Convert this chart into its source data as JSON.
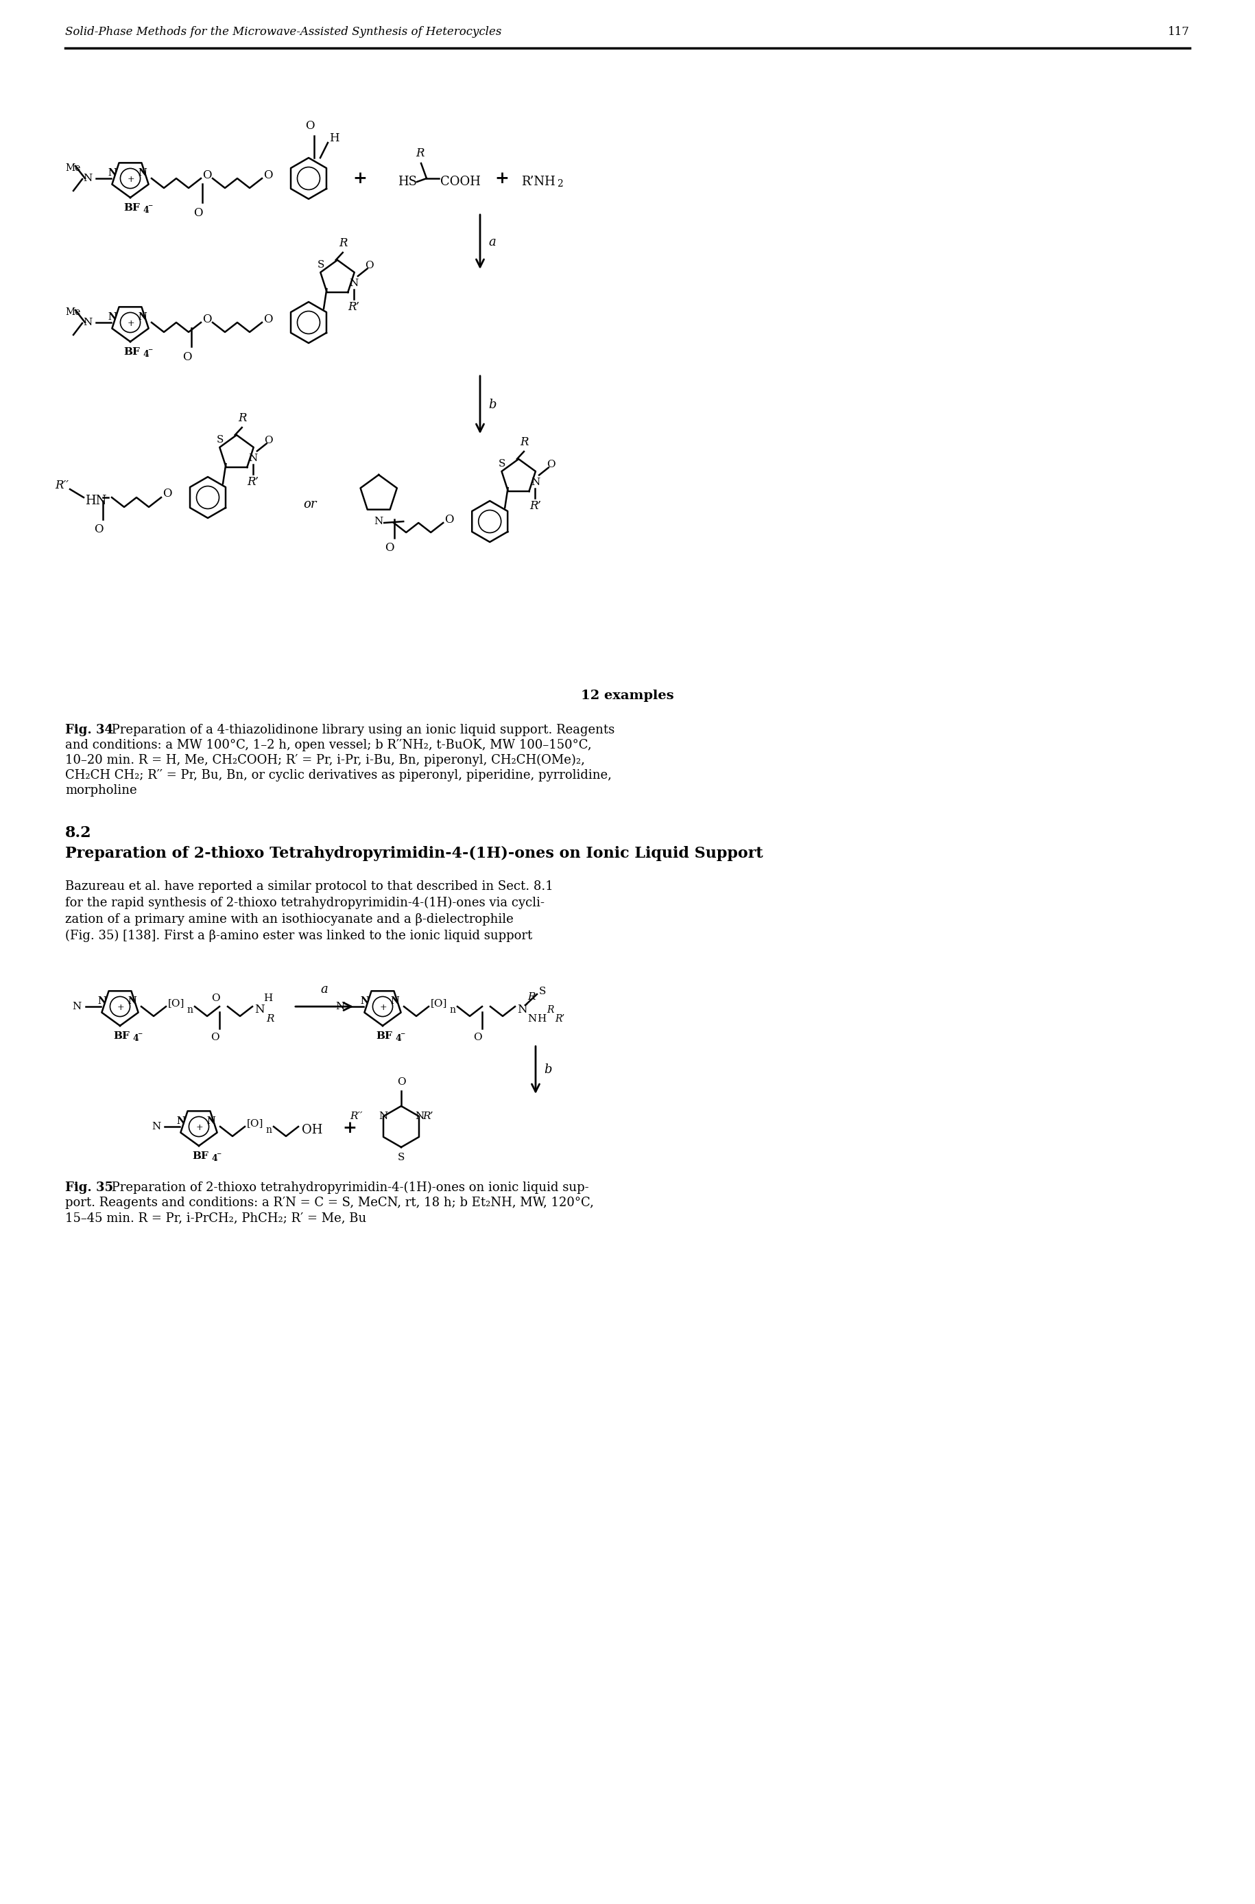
{
  "page_title": "Solid-Phase Methods for the Microwave-Assisted Synthesis of Heterocycles",
  "page_number": "117",
  "fig34_caption_bold": "Fig. 34",
  "fig34_caption_line1": " Preparation of a 4-thiazolidinone library using an ionic liquid support. Reagents",
  "fig34_caption_line2": "and conditions: a MW 100°C, 1–2 h, open vessel; b R′′NH₂, t-BuOK, MW 100–150°C,",
  "fig34_caption_line3": "10–20 min. R = H, Me, CH₂COOH; R′ = Pr, i-Pr, i-Bu, Bn, piperonyl, CH₂CH(OMe)₂,",
  "fig34_caption_line4": "CH₂CH CH₂; R′′ = Pr, Bu, Bn, or cyclic derivatives as piperonyl, piperidine, pyrrolidine,",
  "fig34_caption_line5": "morpholine",
  "section_num": "8.2",
  "section_title": "Preparation of 2-thioxo Tetrahydropyrimidin-4-(1H)-ones on Ionic Liquid Support",
  "body_line1": "Bazureau et al. have reported a similar protocol to that described in Sect. 8.1",
  "body_line2": "for the rapid synthesis of 2-thioxo tetrahydropyrimidin-4-(1H)-ones via cycli-",
  "body_line3": "zation of a primary amine with an isothiocyanate and a β-dielectrophile",
  "body_line4": "(Fig. 35) [138]. First a β-amino ester was linked to the ionic liquid support",
  "fig35_label": "12 examples",
  "fig35_caption_bold": "Fig. 35",
  "fig35_caption_line1": " Preparation of 2-thioxo tetrahydropyrimidin-4-(1H)-ones on ionic liquid sup-",
  "fig35_caption_line2": "port. Reagents and conditions: a R′N = C = S, MeCN, rt, 18 h; b Et₂NH, MW, 120°C,",
  "fig35_caption_line3": "15–45 min. R = Pr, i-PrCH₂, PhCH₂; R′ = Me, Bu",
  "bg_color": "#ffffff"
}
